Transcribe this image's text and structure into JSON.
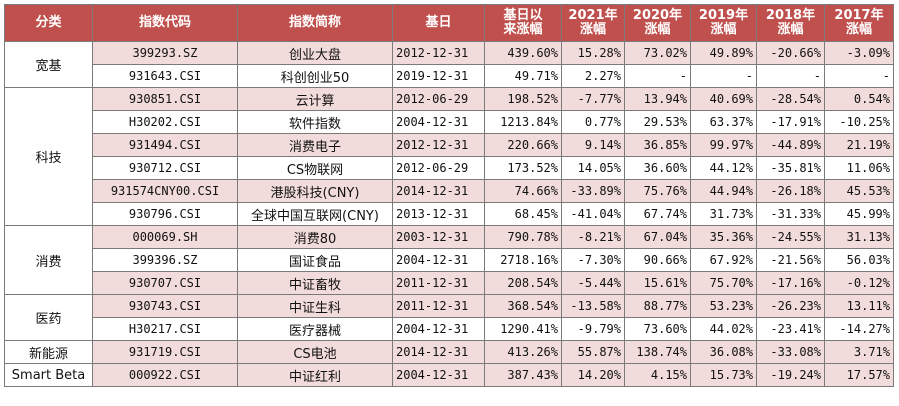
{
  "headers": [
    "分类",
    "指数代码",
    "指数简称",
    "基日",
    "基日以\n来涨幅",
    "2021年\n涨幅",
    "2020年\n涨幅",
    "2019年\n涨幅",
    "2018年\n涨幅",
    "2017年\n涨幅"
  ],
  "groups": [
    {
      "label": "宽基",
      "rows": [
        {
          "code": "399293.SZ",
          "name": "创业大盘",
          "base_date": "2012-12-31",
          "since_base": "439.60%",
          "y2021": "15.28%",
          "y2020": "73.02%",
          "y2019": "49.89%",
          "y2018": "-20.66%",
          "y2017": "-3.09%"
        },
        {
          "code": "931643.CSI",
          "name": "科创创业50",
          "base_date": "2019-12-31",
          "since_base": "49.71%",
          "y2021": "2.27%",
          "y2020": "-",
          "y2019": "-",
          "y2018": "-",
          "y2017": "-"
        }
      ]
    },
    {
      "label": "科技",
      "rows": [
        {
          "code": "930851.CSI",
          "name": "云计算",
          "base_date": "2012-06-29",
          "since_base": "198.52%",
          "y2021": "-7.77%",
          "y2020": "13.94%",
          "y2019": "40.69%",
          "y2018": "-28.54%",
          "y2017": "0.54%"
        },
        {
          "code": "H30202.CSI",
          "name": "软件指数",
          "base_date": "2004-12-31",
          "since_base": "1213.84%",
          "y2021": "0.77%",
          "y2020": "29.53%",
          "y2019": "63.37%",
          "y2018": "-17.91%",
          "y2017": "-10.25%"
        },
        {
          "code": "931494.CSI",
          "name": "消费电子",
          "base_date": "2012-12-31",
          "since_base": "220.66%",
          "y2021": "9.14%",
          "y2020": "36.85%",
          "y2019": "99.97%",
          "y2018": "-44.89%",
          "y2017": "21.19%"
        },
        {
          "code": "930712.CSI",
          "name": "CS物联网",
          "base_date": "2012-06-29",
          "since_base": "173.52%",
          "y2021": "14.05%",
          "y2020": "36.60%",
          "y2019": "44.12%",
          "y2018": "-35.81%",
          "y2017": "11.06%"
        },
        {
          "code": "931574CNY00.CSI",
          "name": "港股科技(CNY)",
          "base_date": "2014-12-31",
          "since_base": "74.66%",
          "y2021": "-33.89%",
          "y2020": "75.76%",
          "y2019": "44.94%",
          "y2018": "-26.18%",
          "y2017": "45.53%"
        },
        {
          "code": "930796.CSI",
          "name": "全球中国互联网(CNY)",
          "base_date": "2013-12-31",
          "since_base": "68.45%",
          "y2021": "-41.04%",
          "y2020": "67.74%",
          "y2019": "31.73%",
          "y2018": "-31.33%",
          "y2017": "45.99%"
        }
      ]
    },
    {
      "label": "消费",
      "rows": [
        {
          "code": "000069.SH",
          "name": "消费80",
          "base_date": "2003-12-31",
          "since_base": "790.78%",
          "y2021": "-8.21%",
          "y2020": "67.04%",
          "y2019": "35.36%",
          "y2018": "-24.55%",
          "y2017": "31.13%"
        },
        {
          "code": "399396.SZ",
          "name": "国证食品",
          "base_date": "2004-12-31",
          "since_base": "2718.16%",
          "y2021": "-7.30%",
          "y2020": "90.66%",
          "y2019": "67.92%",
          "y2018": "-21.56%",
          "y2017": "56.03%"
        },
        {
          "code": "930707.CSI",
          "name": "中证畜牧",
          "base_date": "2011-12-31",
          "since_base": "208.54%",
          "y2021": "-5.44%",
          "y2020": "15.61%",
          "y2019": "75.70%",
          "y2018": "-17.16%",
          "y2017": "-0.12%"
        }
      ]
    },
    {
      "label": "医药",
      "rows": [
        {
          "code": "930743.CSI",
          "name": "中证生科",
          "base_date": "2011-12-31",
          "since_base": "368.54%",
          "y2021": "-13.58%",
          "y2020": "88.77%",
          "y2019": "53.23%",
          "y2018": "-26.23%",
          "y2017": "13.11%"
        },
        {
          "code": "H30217.CSI",
          "name": "医疗器械",
          "base_date": "2004-12-31",
          "since_base": "1290.41%",
          "y2021": "-9.79%",
          "y2020": "73.60%",
          "y2019": "44.02%",
          "y2018": "-23.41%",
          "y2017": "-14.27%"
        }
      ]
    },
    {
      "label": "新能源",
      "rows": [
        {
          "code": "931719.CSI",
          "name": "CS电池",
          "base_date": "2014-12-31",
          "since_base": "413.26%",
          "y2021": "55.87%",
          "y2020": "138.74%",
          "y2019": "36.08%",
          "y2018": "-33.08%",
          "y2017": "3.71%"
        }
      ]
    },
    {
      "label": "Smart Beta",
      "rows": [
        {
          "code": "000922.CSI",
          "name": "中证红利",
          "base_date": "2004-12-31",
          "since_base": "387.43%",
          "y2021": "14.20%",
          "y2020": "4.15%",
          "y2019": "15.73%",
          "y2018": "-19.24%",
          "y2017": "17.57%"
        }
      ]
    }
  ],
  "colors": {
    "header_bg": "#c0504d",
    "header_text": "#ffffff",
    "row_pink": "#f2dcdb",
    "row_white": "#ffffff",
    "border": "#7a7a7a"
  }
}
